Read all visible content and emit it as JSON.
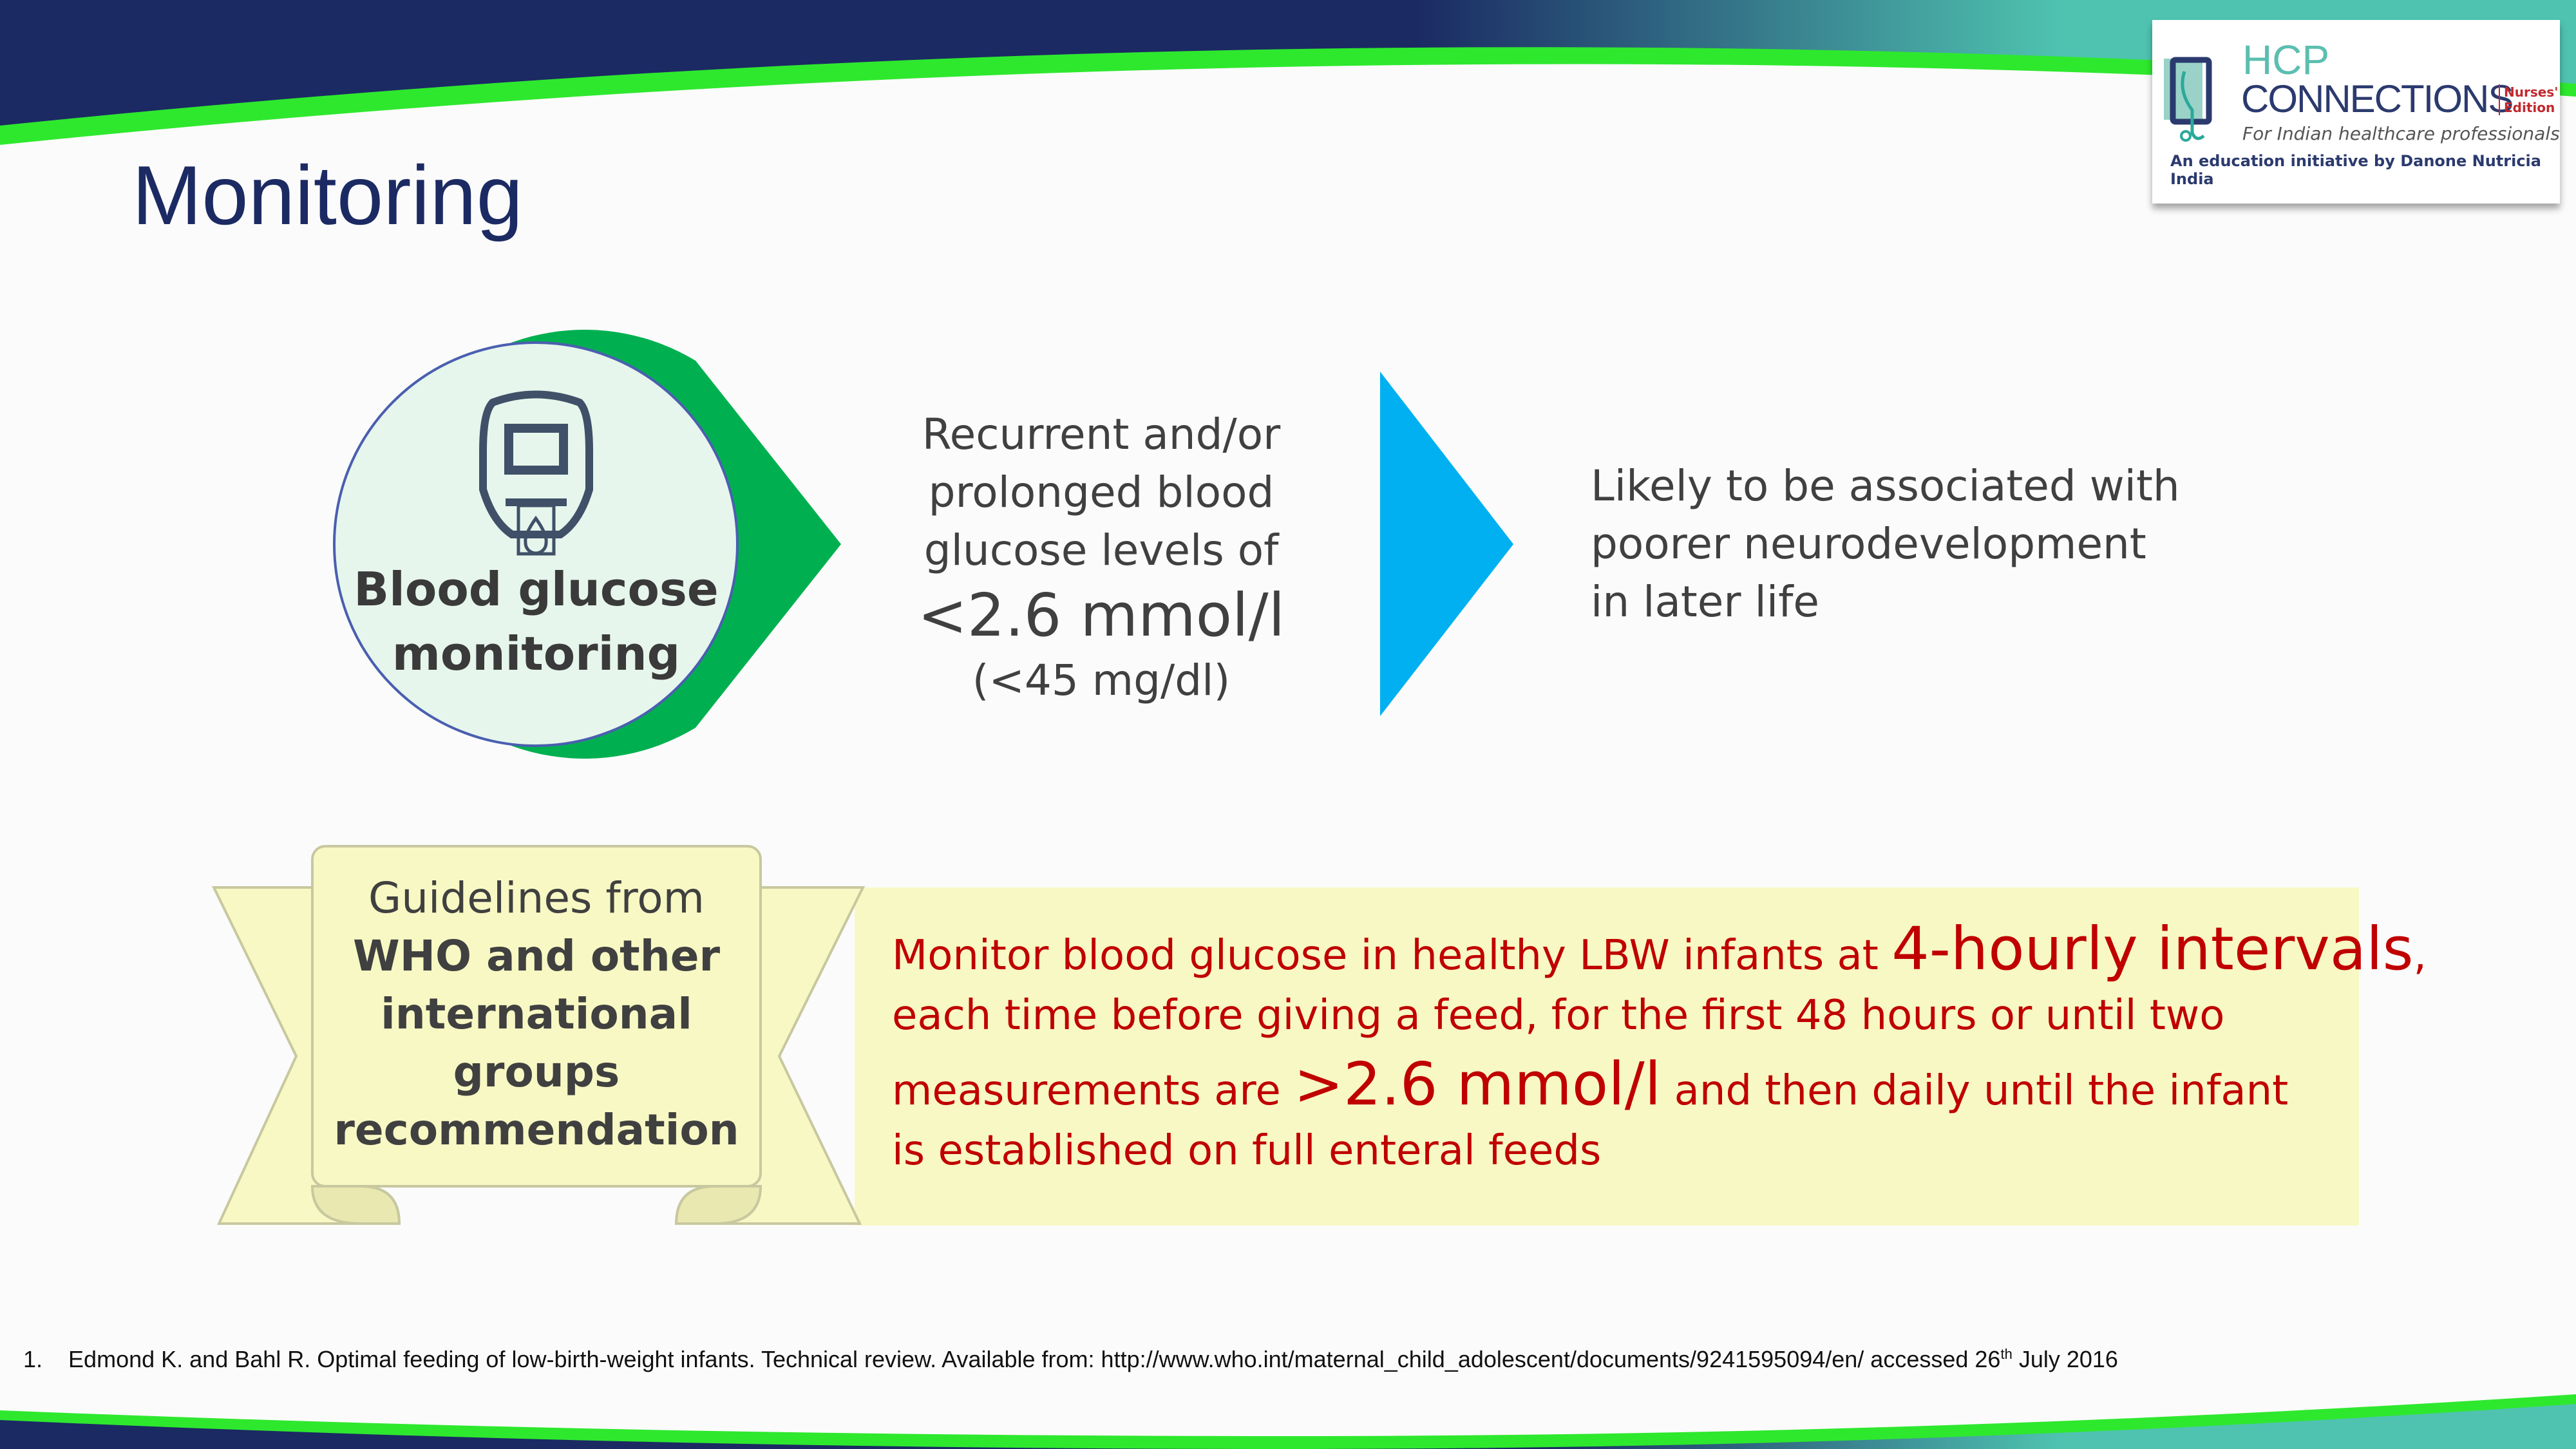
{
  "slide": {
    "title": "Monitoring",
    "circle_label_line1": "Blood glucose",
    "circle_label_line2": "monitoring",
    "circle_icon": "glucose-meter-icon",
    "middle": {
      "line1": "Recurrent and/or",
      "line2": "prolonged blood",
      "line3": "glucose levels of",
      "threshold": "<2.6 mmol/l",
      "threshold_mgdl": "(<45 mg/dl)"
    },
    "outcome": {
      "line1": "Likely to be associated with",
      "line2": "poorer neurodevelopment",
      "line3": "in later life"
    },
    "ribbon": {
      "line1": "Guidelines from",
      "line2": "WHO and other",
      "line3": "international",
      "line4": "groups",
      "line5": "recommendation"
    },
    "recommendation": {
      "p1": "Monitor blood glucose in healthy LBW infants at ",
      "p1_big": "4-hourly intervals",
      "p1_end": ",",
      "p2": "each time before giving a feed, for the first 48 hours or until two",
      "p3": "measurements are ",
      "p3_big": ">2.6 mmol/l",
      "p3_end": " and then daily until the infant",
      "p4": "is established on full enteral feeds"
    },
    "footnote": {
      "number": "1.",
      "text": "Edmond K. and Bahl R. Optimal feeding of low-birth-weight infants.  Technical review.  Available from: http://www.who.int/maternal_child_adolescent/documents/9241595094/en/  accessed 26",
      "sup": "th",
      "end": " July 2016"
    }
  },
  "logo": {
    "hcp": "HCP",
    "connections": "CONNECTIONS",
    "edition1": "Nurses'",
    "edition2": "Edition",
    "tagline": "For Indian healthcare professionals",
    "initiative": "An education initiative by Danone Nutricia India"
  },
  "colors": {
    "navy": "#1b2a63",
    "green": "#2ee82e",
    "teal": "#4fc3b0",
    "circle_green": "#00b050",
    "arrow_blue": "#00b0f0",
    "red": "#c00000",
    "yellow": "#f8f8c4"
  }
}
